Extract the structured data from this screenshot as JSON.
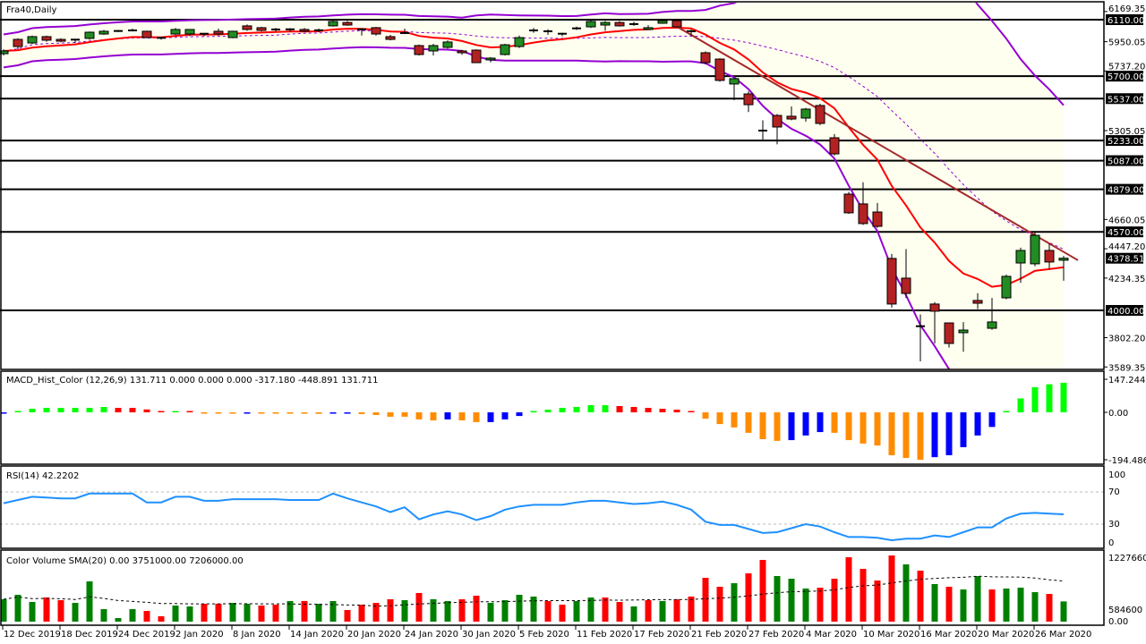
{
  "header": {
    "symbol_label": "Fra40,Daily",
    "macd_label": "MACD_Hist_Color (12,26,9)  131.711 0.000 0.000 0.000 -317.180 -448.891 131.711",
    "rsi_label": "RSI(14) 42.2202",
    "volume_label": "Color Volume SMA(20) 0.00 3751000.00 7206000.00"
  },
  "colors": {
    "bull_candle": "#228B22",
    "bear_candle": "#B22222",
    "band_fill": "#FFFFF0",
    "bollinger": "#9400D3",
    "ma": "#FF0000",
    "trendline": "#A52A2A",
    "rsi": "#1E90FF",
    "hist": {
      "green": "#00FF00",
      "red": "#FF0000",
      "orange": "#FF8C00",
      "blue": "#0000FF"
    },
    "vol": {
      "green": "#008000",
      "red": "#FF0000"
    }
  },
  "chart_data": [
    {
      "type": "candlestick",
      "title": "Fra40,Daily",
      "ylim": [
        3589.35,
        6169.35
      ],
      "price_ticks": [
        "6169.35",
        "5950.05",
        "5737.20",
        "5305.05",
        "4660.05",
        "4447.20",
        "4234.35",
        "3802.20",
        "3589.35"
      ],
      "tick_values": [
        6169.35,
        5950.05,
        5737.2,
        5305.05,
        4660.05,
        4447.2,
        4234.35,
        3802.2,
        3589.35
      ],
      "levels": [
        {
          "value": 6110,
          "label": "6110.00"
        },
        {
          "value": 5700,
          "label": "5700.00"
        },
        {
          "value": 5537,
          "label": "5537.00"
        },
        {
          "value": 5233,
          "label": "5233.00"
        },
        {
          "value": 5087,
          "label": "5087.00"
        },
        {
          "value": 4879,
          "label": "4879.00"
        },
        {
          "value": 4570,
          "label": "4570.00"
        },
        {
          "value": 4000,
          "label": "4000.00"
        }
      ],
      "current_price": {
        "value": 4378.51,
        "label": "4378.51"
      },
      "trendline": {
        "start_bar": 47,
        "start_price": 6060,
        "end_bar": 75,
        "end_price": 4364
      },
      "indicators": [
        "Bollinger Bands (20)",
        "Moving average",
        "Trendline"
      ],
      "x_labels": [
        "12 Dec 2019",
        "18 Dec 2019",
        "24 Dec 2019",
        "2 Jan 2020",
        "8 Jan 2020",
        "14 Jan 2020",
        "20 Jan 2020",
        "24 Jan 2020",
        "30 Jan 2020",
        "5 Feb 2020",
        "11 Feb 2020",
        "17 Feb 2020",
        "21 Feb 2020",
        "27 Feb 2020",
        "4 Mar 2020",
        "10 Mar 2020",
        "16 Mar 2020",
        "20 Mar 2020",
        "26 Mar 2020"
      ],
      "ohlc": [
        [
          5863,
          5895,
          5850,
          5883
        ],
        [
          5967,
          5975,
          5896,
          5915
        ],
        [
          5941,
          5995,
          5935,
          5987
        ],
        [
          5987,
          5995,
          5950,
          5961
        ],
        [
          5967,
          5975,
          5945,
          5954
        ],
        [
          5962,
          5970,
          5940,
          5965
        ],
        [
          5974,
          6025,
          5965,
          6019
        ],
        [
          6006,
          6035,
          6000,
          6026
        ],
        [
          6026,
          6035,
          6020,
          6028
        ],
        [
          6030,
          6045,
          6025,
          6032
        ],
        [
          6026,
          6030,
          5975,
          5980
        ],
        [
          5975,
          5985,
          5965,
          5978
        ],
        [
          6006,
          6050,
          6000,
          6039
        ],
        [
          6006,
          6042,
          5990,
          6039
        ],
        [
          6006,
          6010,
          5990,
          6008
        ],
        [
          6026,
          6045,
          5995,
          6006
        ],
        [
          5980,
          6030,
          5975,
          6026
        ],
        [
          6065,
          6075,
          6030,
          6039
        ],
        [
          6052,
          6058,
          6025,
          6032
        ],
        [
          6039,
          6050,
          6025,
          6037
        ],
        [
          6039,
          6048,
          6022,
          6040
        ],
        [
          6039,
          6050,
          6020,
          6026
        ],
        [
          6032,
          6045,
          6020,
          6033
        ],
        [
          6065,
          6110,
          6060,
          6097
        ],
        [
          6090,
          6100,
          6065,
          6071
        ],
        [
          6039,
          6045,
          5995,
          6040
        ],
        [
          6052,
          6058,
          5995,
          6006
        ],
        [
          5987,
          6000,
          5960,
          5967
        ],
        [
          6013,
          6045,
          6005,
          6012
        ],
        [
          5922,
          5930,
          5850,
          5857
        ],
        [
          5883,
          5935,
          5850,
          5922
        ],
        [
          5909,
          5960,
          5900,
          5948
        ],
        [
          5883,
          5890,
          5855,
          5870
        ],
        [
          5889,
          5895,
          5795,
          5798
        ],
        [
          5818,
          5838,
          5800,
          5831
        ],
        [
          5857,
          5935,
          5850,
          5928
        ],
        [
          5915,
          5995,
          5905,
          5980
        ],
        [
          6032,
          6050,
          6015,
          6030
        ],
        [
          6026,
          6040,
          6000,
          6025
        ],
        [
          6006,
          6015,
          5990,
          6008
        ],
        [
          6045,
          6060,
          6035,
          6047
        ],
        [
          6058,
          6110,
          6050,
          6097
        ],
        [
          6071,
          6100,
          6030,
          6090
        ],
        [
          6090,
          6100,
          6060,
          6065
        ],
        [
          6078,
          6095,
          6065,
          6076
        ],
        [
          6039,
          6070,
          6035,
          6052
        ],
        [
          6084,
          6110,
          6080,
          6103
        ],
        [
          6103,
          6110,
          6055,
          6058
        ],
        [
          6026,
          6040,
          5990,
          6024
        ],
        [
          5870,
          5880,
          5785,
          5798
        ],
        [
          5824,
          5830,
          5660,
          5669
        ],
        [
          5643,
          5690,
          5526,
          5682
        ],
        [
          5571,
          5590,
          5440,
          5493
        ],
        [
          5305,
          5380,
          5230,
          5305
        ],
        [
          5415,
          5425,
          5205,
          5331
        ],
        [
          5409,
          5480,
          5380,
          5389
        ],
        [
          5396,
          5470,
          5370,
          5461
        ],
        [
          5487,
          5500,
          5345,
          5357
        ],
        [
          5253,
          5280,
          5125,
          5136
        ],
        [
          4844,
          4860,
          4700,
          4708
        ],
        [
          4773,
          4930,
          4620,
          4630
        ],
        [
          4714,
          4780,
          4600,
          4610
        ],
        [
          4377,
          4410,
          4020,
          4046
        ],
        [
          4234,
          4445,
          4090,
          4123
        ],
        [
          3883,
          3970,
          3630,
          3885
        ],
        [
          4046,
          4060,
          3760,
          3994
        ],
        [
          3909,
          3909,
          3730,
          3760
        ],
        [
          3838,
          3915,
          3700,
          3857
        ],
        [
          4072,
          4125,
          4010,
          4052
        ],
        [
          3870,
          4090,
          3860,
          3916
        ],
        [
          4091,
          4260,
          4080,
          4247
        ],
        [
          4344,
          4455,
          4200,
          4435
        ],
        [
          4338,
          4575,
          4320,
          4545
        ],
        [
          4435,
          4485,
          4300,
          4351
        ],
        [
          4364,
          4395,
          4215,
          4378.51
        ]
      ]
    },
    {
      "type": "bar",
      "title": "MACD_Hist_Color (12,26,9)",
      "ylim": [
        -194.486,
        147.244
      ],
      "axis_labels": [
        "147.244",
        "0.00",
        "-194.486"
      ],
      "values": [
        -1,
        1,
        16,
        20,
        20,
        20,
        20,
        24,
        20,
        20,
        13,
        4,
        3,
        3,
        -3,
        -4,
        -4,
        -3,
        -4,
        -4,
        -4,
        -4,
        -6,
        -2,
        -2,
        -7,
        -11,
        -18,
        -18,
        -29,
        -33,
        -29,
        -33,
        -40,
        -40,
        -29,
        -15,
        3,
        12,
        20,
        24,
        32,
        32,
        28,
        24,
        20,
        16,
        12,
        3,
        -26,
        -48,
        -62,
        -84,
        -110,
        -117,
        -114,
        -95,
        -81,
        -84,
        -114,
        -128,
        -136,
        -176,
        -187,
        -194.486,
        -184,
        -176,
        -143,
        -95,
        -60,
        2,
        62,
        112,
        125,
        131.711
      ],
      "colors": [
        "blue",
        "green",
        "green",
        "green",
        "green",
        "green",
        "green",
        "green",
        "red",
        "red",
        "red",
        "red",
        "green",
        "red",
        "orange",
        "orange",
        "orange",
        "blue",
        "orange",
        "orange",
        "orange",
        "orange",
        "orange",
        "blue",
        "blue",
        "orange",
        "orange",
        "orange",
        "orange",
        "orange",
        "orange",
        "blue",
        "orange",
        "orange",
        "blue",
        "blue",
        "blue",
        "green",
        "green",
        "green",
        "green",
        "green",
        "green",
        "red",
        "red",
        "red",
        "red",
        "red",
        "red",
        "orange",
        "orange",
        "orange",
        "orange",
        "orange",
        "orange",
        "blue",
        "blue",
        "blue",
        "orange",
        "orange",
        "orange",
        "orange",
        "orange",
        "orange",
        "orange",
        "blue",
        "blue",
        "blue",
        "blue",
        "blue",
        "green",
        "green",
        "green",
        "green",
        "green"
      ]
    },
    {
      "type": "line",
      "title": "RSI(14)",
      "ylim": [
        0,
        100
      ],
      "levels": [
        70,
        30
      ],
      "axis_labels": [
        "100",
        "70",
        "30",
        "0"
      ],
      "values": [
        56,
        60,
        64,
        63,
        62,
        62,
        68,
        68,
        68,
        68,
        57,
        57,
        64,
        64,
        59,
        59,
        61,
        61,
        61,
        61,
        60,
        60,
        60,
        68,
        62,
        57,
        52,
        45,
        51,
        36,
        42,
        46,
        42,
        35,
        40,
        48,
        52,
        54,
        54,
        54,
        57,
        59,
        59,
        57,
        55,
        56,
        58,
        54,
        48,
        33,
        29,
        29,
        24,
        19,
        20,
        25,
        30,
        27,
        20,
        14,
        14,
        13,
        10,
        12,
        12,
        16,
        14,
        20,
        26,
        26,
        37,
        43,
        44,
        43,
        42.2202
      ]
    },
    {
      "type": "bar",
      "title": "Color Volume SMA(20)",
      "ylim": [
        0,
        12276600
      ],
      "axis_labels": [
        "12276600",
        "584600",
        "0.00"
      ],
      "values": [
        4150000,
        4980000,
        3650000,
        4480000,
        3980000,
        3480000,
        7470000,
        2320000,
        660000,
        2320000,
        1990000,
        1000000,
        2990000,
        2820000,
        3320000,
        3320000,
        3480000,
        3320000,
        2990000,
        3150000,
        3820000,
        3820000,
        3320000,
        3820000,
        2160000,
        3150000,
        3480000,
        4150000,
        3980000,
        5310000,
        4150000,
        3820000,
        4150000,
        4810000,
        3480000,
        3980000,
        4980000,
        4650000,
        3820000,
        3150000,
        3820000,
        4480000,
        4480000,
        3650000,
        2820000,
        3980000,
        3820000,
        4150000,
        4650000,
        8130000,
        6470000,
        7130000,
        8960000,
        11450000,
        8460000,
        7960000,
        6140000,
        6300000,
        7960000,
        11940000,
        9790000,
        7630000,
        12276600,
        10620000,
        9460000,
        6970000,
        6470000,
        5970000,
        8460000,
        5970000,
        6140000,
        6300000,
        5470000,
        5140000,
        3751000
      ],
      "colors": [
        "green",
        "green",
        "green",
        "red",
        "red",
        "green",
        "green",
        "green",
        "green",
        "green",
        "red",
        "red",
        "green",
        "green",
        "red",
        "red",
        "green",
        "green",
        "red",
        "red",
        "green",
        "red",
        "green",
        "green",
        "red",
        "red",
        "red",
        "red",
        "green",
        "red",
        "green",
        "green",
        "red",
        "red",
        "green",
        "green",
        "green",
        "green",
        "red",
        "red",
        "green",
        "green",
        "red",
        "red",
        "green",
        "red",
        "green",
        "red",
        "red",
        "red",
        "red",
        "green",
        "red",
        "red",
        "green",
        "green",
        "green",
        "red",
        "red",
        "red",
        "red",
        "red",
        "red",
        "green",
        "red",
        "green",
        "red",
        "green",
        "green",
        "red",
        "green",
        "green",
        "green",
        "red",
        "green"
      ]
    }
  ]
}
